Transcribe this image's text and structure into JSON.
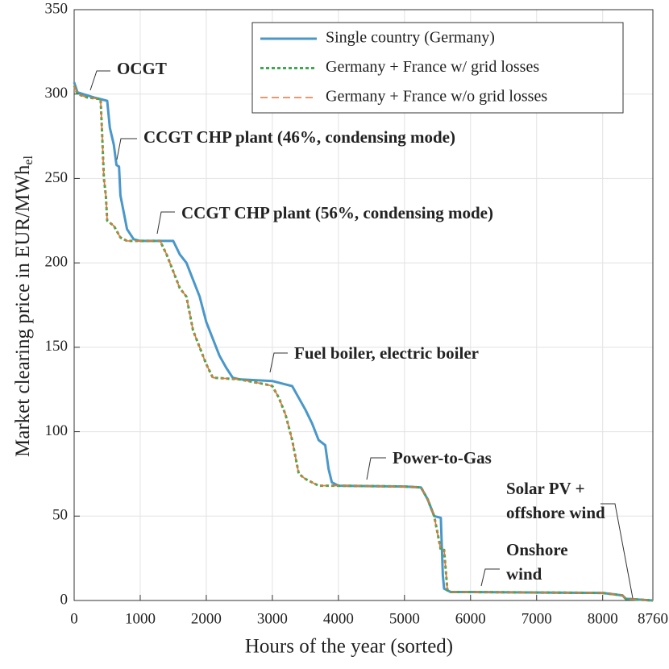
{
  "chart_data": {
    "type": "line",
    "xlabel": "Hours of the year (sorted)",
    "ylabel": {
      "text": "Market clearing price in EUR/MWh",
      "subscript": "el"
    },
    "xlim": [
      0,
      8760
    ],
    "ylim": [
      0,
      350
    ],
    "xticks": [
      0,
      1000,
      2000,
      3000,
      4000,
      5000,
      6000,
      7000,
      8000,
      8760
    ],
    "yticks": [
      0,
      50,
      100,
      150,
      200,
      250,
      300,
      350
    ],
    "grid": true,
    "legend": "upper right",
    "series": [
      {
        "name": "Single country (Germany)",
        "color": "#4a97c9",
        "style": "solid",
        "x": [
          0,
          50,
          300,
          400,
          500,
          540,
          600,
          640,
          680,
          700,
          750,
          800,
          900,
          1000,
          1500,
          1600,
          1700,
          1800,
          1900,
          2000,
          2100,
          2200,
          2300,
          2400,
          2500,
          3000,
          3200,
          3300,
          3400,
          3500,
          3600,
          3700,
          3800,
          3850,
          3900,
          4000,
          5000,
          5250,
          5350,
          5450,
          5550,
          5580,
          5600,
          5700,
          6000,
          8000,
          8300,
          8350,
          8760
        ],
        "values": [
          307,
          301,
          298,
          297,
          296,
          280,
          270,
          258,
          257,
          240,
          230,
          220,
          214,
          213,
          213,
          205,
          200,
          190,
          180,
          165,
          155,
          145,
          138,
          132,
          131,
          130,
          128,
          127,
          120,
          113,
          105,
          95,
          92,
          78,
          70,
          68,
          67.5,
          67,
          60,
          50,
          49,
          15,
          7,
          5,
          5,
          4.5,
          3,
          1,
          0
        ]
      },
      {
        "name": "Germany + France w/ grid losses",
        "color": "#3aaa4a",
        "style": "dotted",
        "x": [
          0,
          50,
          200,
          400,
          420,
          450,
          480,
          500,
          600,
          700,
          800,
          1300,
          1400,
          1500,
          1600,
          1700,
          1800,
          1900,
          2000,
          2100,
          2500,
          2900,
          3000,
          3100,
          3200,
          3300,
          3400,
          3500,
          3600,
          3700,
          4000,
          5000,
          5250,
          5350,
          5450,
          5550,
          5600,
          5650,
          5700,
          6000,
          8000,
          8300,
          8350,
          8760
        ],
        "values": [
          305,
          300,
          298,
          297,
          280,
          250,
          240,
          225,
          222,
          215,
          213,
          213,
          205,
          195,
          185,
          180,
          160,
          150,
          140,
          132,
          131,
          128,
          127,
          120,
          110,
          95,
          75,
          72,
          70,
          68,
          68,
          67.5,
          67,
          60,
          50,
          30,
          30,
          6,
          5,
          5,
          4.5,
          3,
          1,
          0
        ]
      },
      {
        "name": "Germany + France w/o grid losses",
        "color": "#e8743b",
        "style": "dashed",
        "x": [
          0,
          50,
          200,
          400,
          420,
          450,
          480,
          500,
          600,
          700,
          800,
          1300,
          1400,
          1500,
          1600,
          1700,
          1800,
          1900,
          2000,
          2100,
          2500,
          2900,
          3000,
          3100,
          3200,
          3300,
          3400,
          3500,
          3600,
          3700,
          4000,
          5000,
          5250,
          5350,
          5450,
          5550,
          5600,
          5650,
          5700,
          6000,
          8000,
          8300,
          8350,
          8760
        ],
        "values": [
          305,
          300,
          298,
          297,
          280,
          250,
          240,
          225,
          222,
          215,
          213,
          213,
          205,
          195,
          185,
          180,
          160,
          150,
          140,
          132,
          131,
          128,
          127,
          120,
          110,
          95,
          75,
          72,
          70,
          68,
          68,
          67.5,
          67,
          60,
          50,
          30,
          30,
          6,
          5,
          5,
          4.5,
          3,
          1,
          0
        ]
      }
    ],
    "annotations": [
      {
        "lines": [
          "OCGT"
        ]
      },
      {
        "lines": [
          "CCGT CHP plant (46%, condensing mode)"
        ]
      },
      {
        "lines": [
          "CCGT CHP plant (56%, condensing mode)"
        ]
      },
      {
        "lines": [
          "Fuel boiler, electric boiler"
        ]
      },
      {
        "lines": [
          "Power-to-Gas"
        ]
      },
      {
        "lines": [
          "Solar PV +",
          "offshore wind"
        ]
      },
      {
        "lines": [
          "Onshore",
          "wind"
        ]
      }
    ]
  }
}
